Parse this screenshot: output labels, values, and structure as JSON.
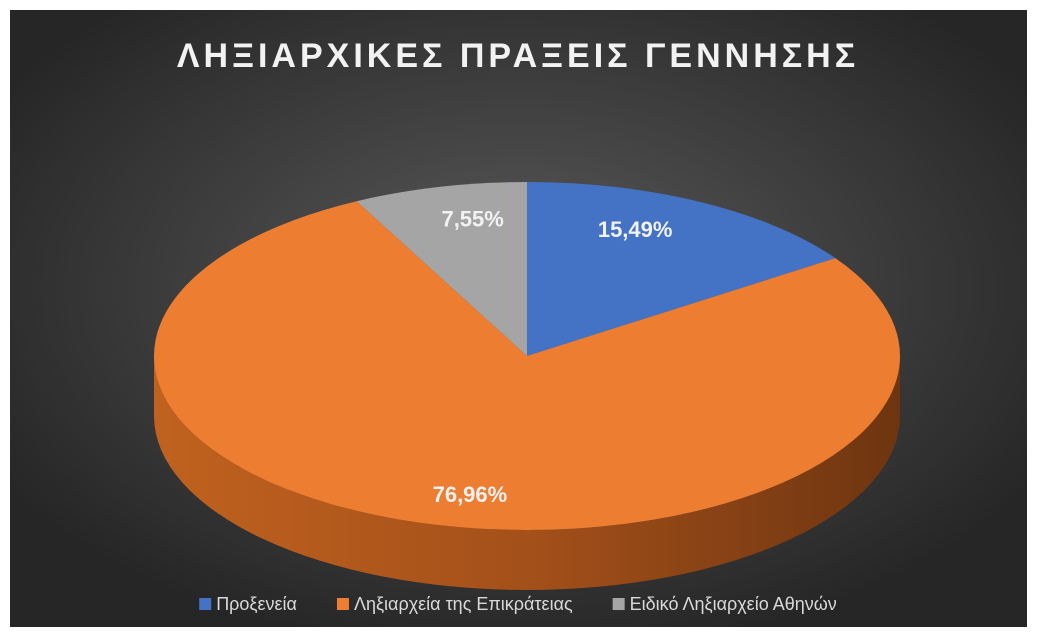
{
  "chart_data": {
    "type": "pie3d",
    "title": "ΛΗΞΙΑΡΧΙΚΕΣ ΠΡΑΞΕΙΣ ΓΕΝΝΗΣΗΣ",
    "categories": [
      "Προξενεία",
      "Ληξιαρχεία της Επικράτειας",
      "Ειδικό Ληξιαρχείο Αθηνών"
    ],
    "values": [
      15.49,
      76.96,
      7.55
    ],
    "value_labels": [
      "15,49%",
      "76,96%",
      "7,55%"
    ],
    "colors": [
      "#4472c4",
      "#ed7d31",
      "#a5a5a5"
    ],
    "legend": "bottom"
  }
}
